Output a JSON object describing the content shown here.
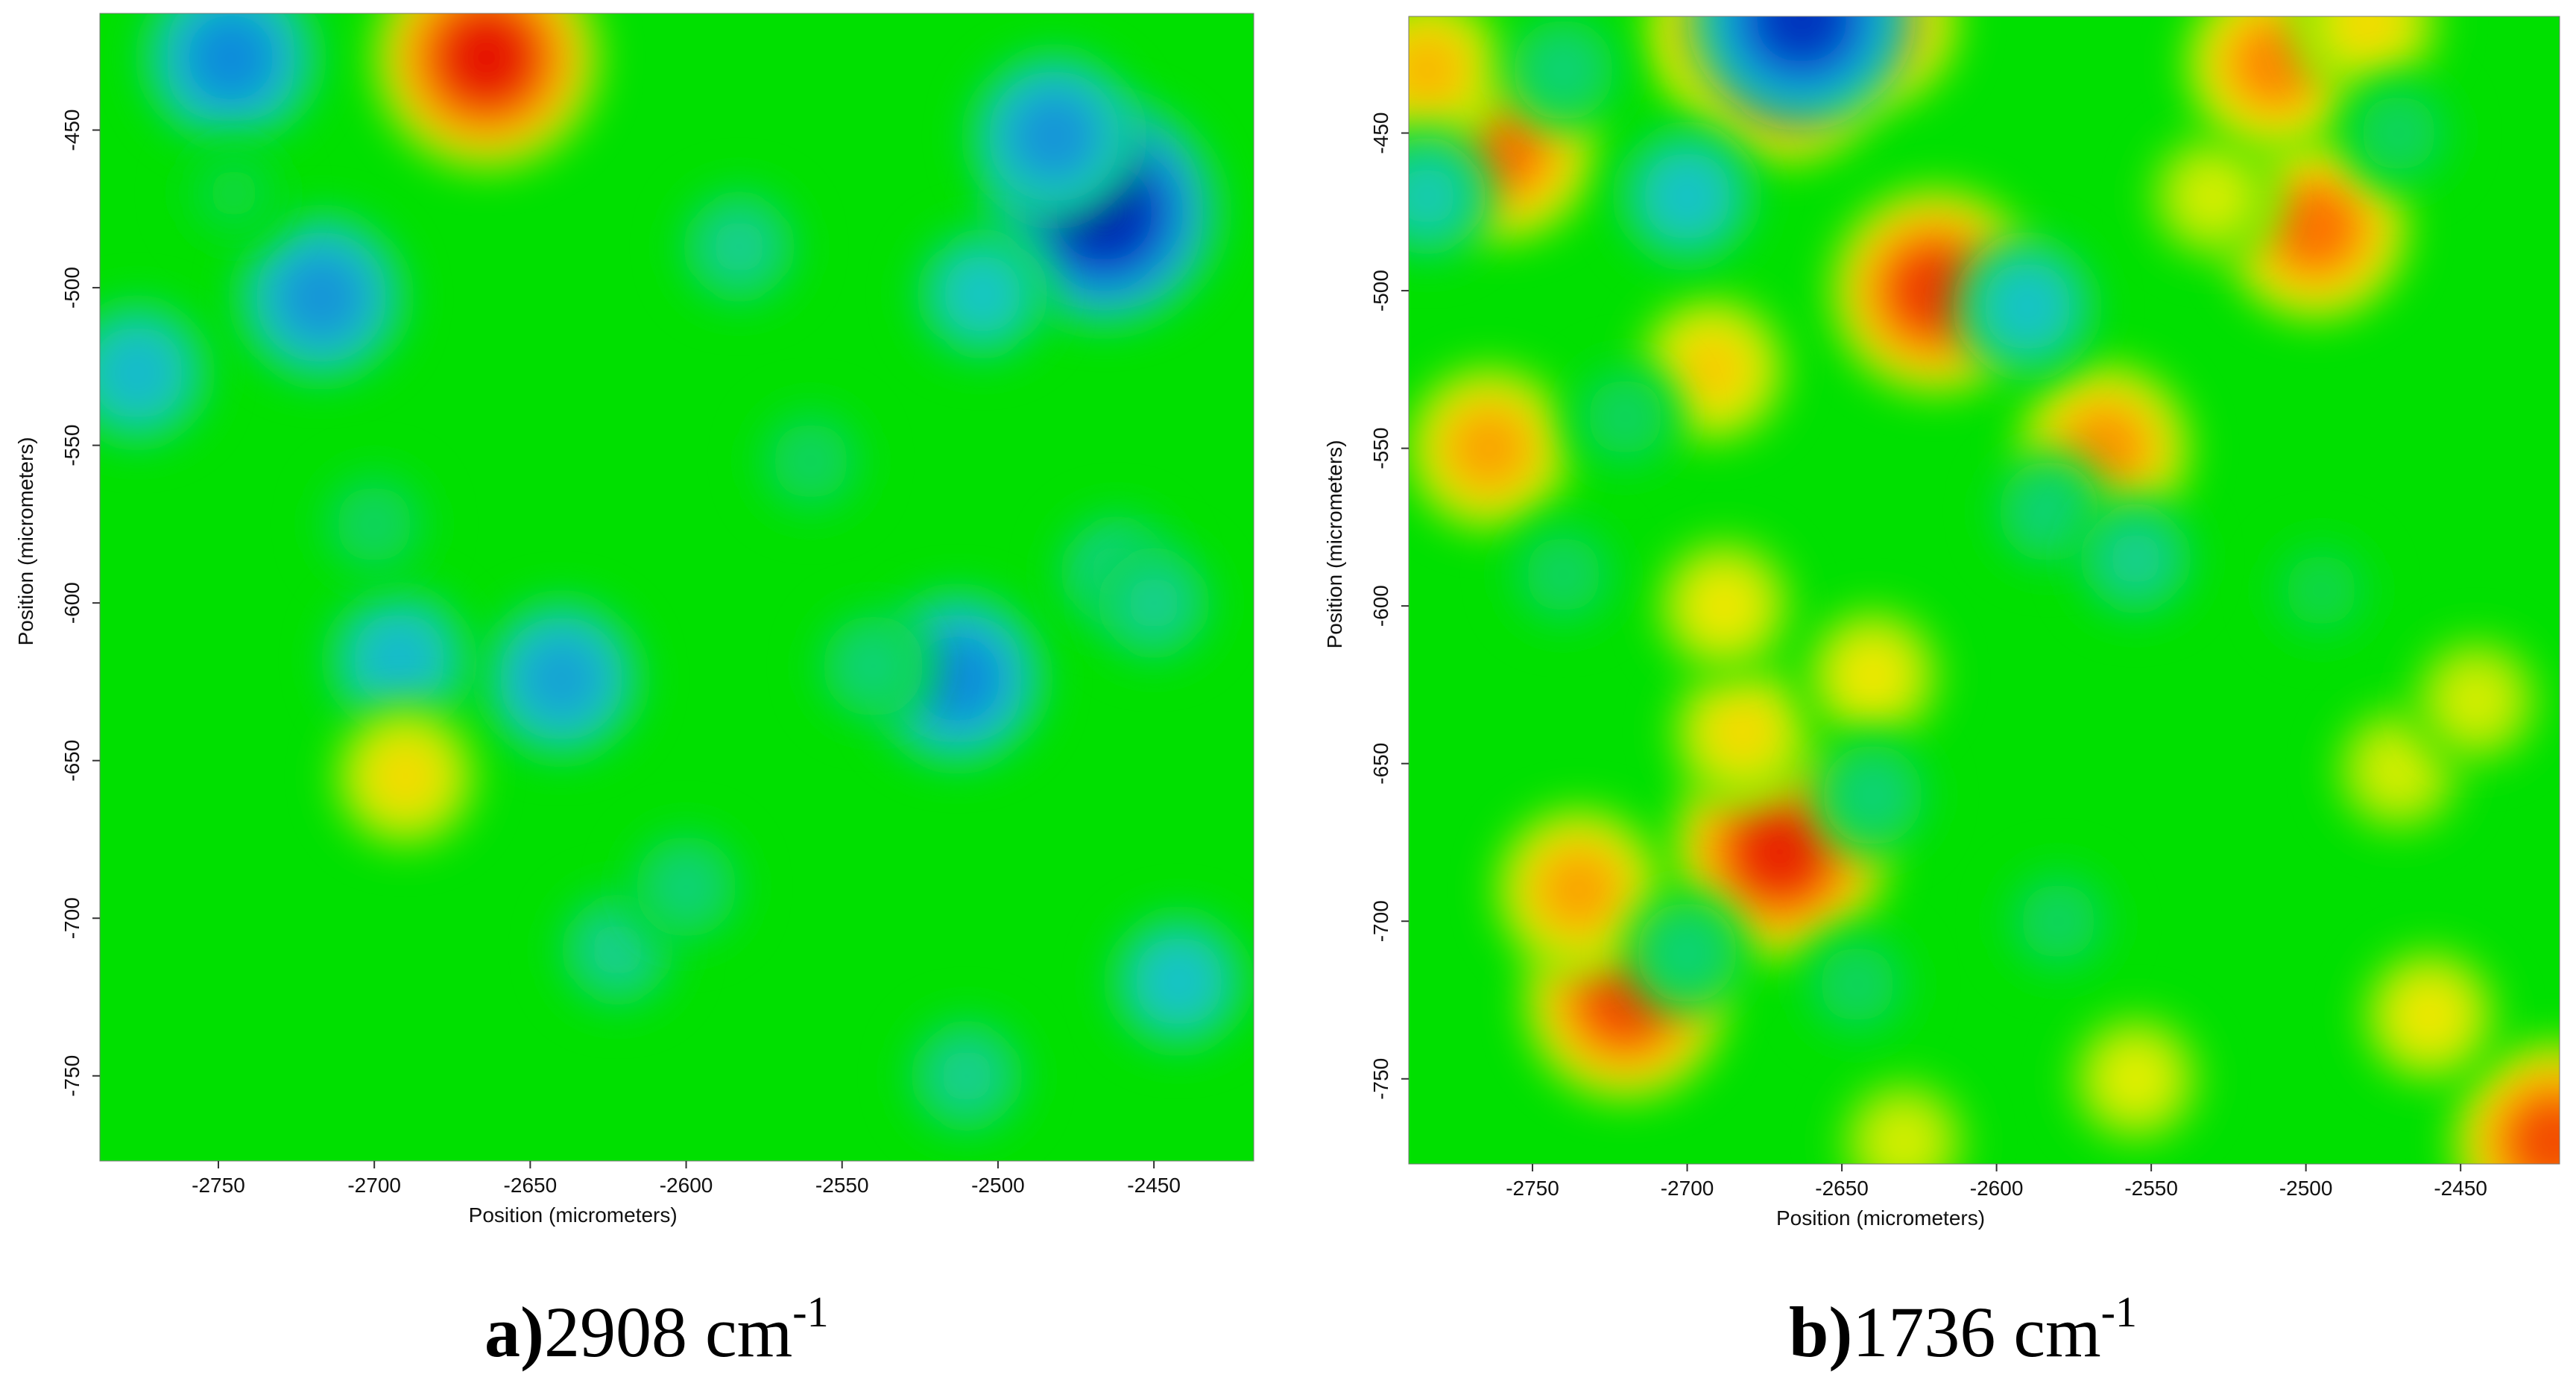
{
  "chart_data": [
    {
      "type": "heatmap",
      "caption_letter": "a)",
      "caption_value": "2908 cm",
      "caption_exponent": "-1",
      "xlabel": "Position (micrometers)",
      "ylabel": "Position (micrometers)",
      "xlim": [
        -2788,
        -2418
      ],
      "ylim": [
        -413,
        -777
      ],
      "x_ticks": [
        -2750,
        -2700,
        -2650,
        -2600,
        -2550,
        -2500,
        -2450
      ],
      "y_ticks": [
        -450,
        -500,
        -550,
        -600,
        -650,
        -700,
        -750
      ],
      "colormap": [
        "#0018b0",
        "#0f7ce0",
        "#19c8c8",
        "#00e000",
        "#f0f000",
        "#ff8000",
        "#e00000"
      ],
      "background_level": 0.5,
      "features": [
        {
          "x": -2746,
          "y": -427,
          "level": 0.2
        },
        {
          "x": -2664,
          "y": -427,
          "level": 0.97
        },
        {
          "x": -2466,
          "y": -476,
          "level": 0.02
        },
        {
          "x": -2482,
          "y": -452,
          "level": 0.22
        },
        {
          "x": -2717,
          "y": -503,
          "level": 0.22
        },
        {
          "x": -2505,
          "y": -502,
          "level": 0.33
        },
        {
          "x": -2583,
          "y": -487,
          "level": 0.38
        },
        {
          "x": -2776,
          "y": -527,
          "level": 0.3
        },
        {
          "x": -2513,
          "y": -624,
          "level": 0.2
        },
        {
          "x": -2640,
          "y": -624,
          "level": 0.25
        },
        {
          "x": -2692,
          "y": -618,
          "level": 0.3
        },
        {
          "x": -2690,
          "y": -655,
          "level": 0.7
        },
        {
          "x": -2442,
          "y": -720,
          "level": 0.32
        },
        {
          "x": -2622,
          "y": -710,
          "level": 0.38
        },
        {
          "x": -2540,
          "y": -620,
          "level": 0.4
        },
        {
          "x": -2462,
          "y": -590,
          "level": 0.38
        },
        {
          "x": -2560,
          "y": -555,
          "level": 0.42
        },
        {
          "x": -2700,
          "y": -575,
          "level": 0.42
        },
        {
          "x": -2600,
          "y": -690,
          "level": 0.4
        },
        {
          "x": -2510,
          "y": -750,
          "level": 0.38
        },
        {
          "x": -2745,
          "y": -470,
          "level": 0.45
        },
        {
          "x": -2450,
          "y": -600,
          "level": 0.38
        }
      ]
    },
    {
      "type": "heatmap",
      "caption_letter": "b)",
      "caption_value": "1736 cm",
      "caption_exponent": "-1",
      "xlabel": "Position (micrometers)",
      "ylabel": "Position (micrometers)",
      "xlim": [
        -2790,
        -2418
      ],
      "ylim": [
        -413,
        -777
      ],
      "x_ticks": [
        -2750,
        -2700,
        -2650,
        -2600,
        -2550,
        -2500,
        -2450
      ],
      "y_ticks": [
        -450,
        -500,
        -550,
        -600,
        -650,
        -700,
        -750
      ],
      "colormap": [
        "#0018b0",
        "#0f7ce0",
        "#19c8c8",
        "#00e000",
        "#f0f000",
        "#ff8000",
        "#e00000"
      ],
      "background_level": 0.5,
      "features": [
        {
          "x": -2670,
          "y": -678,
          "level": 0.95
        },
        {
          "x": -2720,
          "y": -725,
          "level": 0.9
        },
        {
          "x": -2735,
          "y": -690,
          "level": 0.78
        },
        {
          "x": -2682,
          "y": -640,
          "level": 0.7
        },
        {
          "x": -2620,
          "y": -500,
          "level": 0.92
        },
        {
          "x": -2497,
          "y": -480,
          "level": 0.85
        },
        {
          "x": -2530,
          "y": -470,
          "level": 0.65
        },
        {
          "x": -2685,
          "y": -418,
          "level": 0.82
        },
        {
          "x": -2668,
          "y": -428,
          "level": 0.9
        },
        {
          "x": -2640,
          "y": -415,
          "level": 0.8
        },
        {
          "x": -2663,
          "y": -413,
          "level": 0.05
        },
        {
          "x": -2760,
          "y": -455,
          "level": 0.85
        },
        {
          "x": -2510,
          "y": -428,
          "level": 0.82
        },
        {
          "x": -2480,
          "y": -415,
          "level": 0.7
        },
        {
          "x": -2784,
          "y": -430,
          "level": 0.75
        },
        {
          "x": -2764,
          "y": -550,
          "level": 0.78
        },
        {
          "x": -2565,
          "y": -550,
          "level": 0.8
        },
        {
          "x": -2692,
          "y": -525,
          "level": 0.72
        },
        {
          "x": -2688,
          "y": -600,
          "level": 0.68
        },
        {
          "x": -2640,
          "y": -622,
          "level": 0.68
        },
        {
          "x": -2470,
          "y": -652,
          "level": 0.65
        },
        {
          "x": -2445,
          "y": -630,
          "level": 0.65
        },
        {
          "x": -2555,
          "y": -750,
          "level": 0.66
        },
        {
          "x": -2420,
          "y": -770,
          "level": 0.9
        },
        {
          "x": -2630,
          "y": -770,
          "level": 0.65
        },
        {
          "x": -2460,
          "y": -730,
          "level": 0.68
        },
        {
          "x": -2700,
          "y": -470,
          "level": 0.32
        },
        {
          "x": -2590,
          "y": -505,
          "level": 0.32
        },
        {
          "x": -2583,
          "y": -570,
          "level": 0.4
        },
        {
          "x": -2555,
          "y": -585,
          "level": 0.38
        },
        {
          "x": -2784,
          "y": -470,
          "level": 0.35
        },
        {
          "x": -2740,
          "y": -430,
          "level": 0.4
        },
        {
          "x": -2640,
          "y": -660,
          "level": 0.4
        },
        {
          "x": -2645,
          "y": -720,
          "level": 0.42
        },
        {
          "x": -2700,
          "y": -710,
          "level": 0.4
        },
        {
          "x": -2740,
          "y": -590,
          "level": 0.42
        },
        {
          "x": -2720,
          "y": -540,
          "level": 0.42
        },
        {
          "x": -2470,
          "y": -450,
          "level": 0.42
        },
        {
          "x": -2495,
          "y": -595,
          "level": 0.44
        },
        {
          "x": -2580,
          "y": -700,
          "level": 0.42
        }
      ]
    }
  ]
}
